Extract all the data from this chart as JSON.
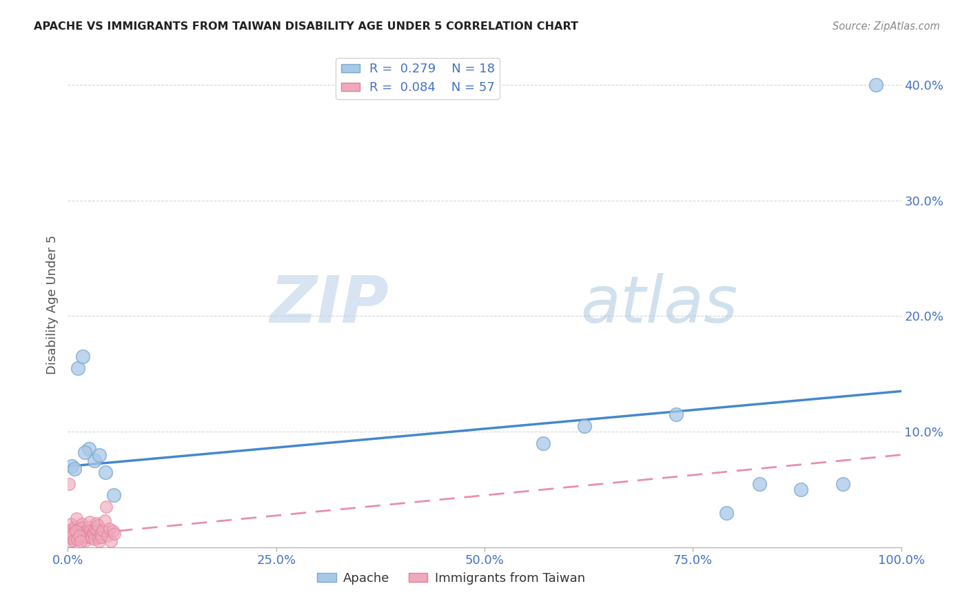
{
  "title": "APACHE VS IMMIGRANTS FROM TAIWAN DISABILITY AGE UNDER 5 CORRELATION CHART",
  "source": "Source: ZipAtlas.com",
  "ylabel": "Disability Age Under 5",
  "xlim": [
    0,
    100
  ],
  "ylim": [
    0,
    42
  ],
  "ytick_vals": [
    0,
    10,
    20,
    30,
    40
  ],
  "ytick_labels": [
    "",
    "10.0%",
    "20.0%",
    "30.0%",
    "40.0%"
  ],
  "xtick_vals": [
    0,
    25,
    50,
    75,
    100
  ],
  "xtick_labels": [
    "0.0%",
    "25.0%",
    "50.0%",
    "75.0%",
    "100.0%"
  ],
  "apache_R": "0.279",
  "apache_N": "18",
  "taiwan_R": "0.084",
  "taiwan_N": "57",
  "watermark_zip": "ZIP",
  "watermark_atlas": "atlas",
  "apache_points_x": [
    0.5,
    1.2,
    1.8,
    2.5,
    3.2,
    3.8,
    4.5,
    5.5,
    57.0,
    62.0,
    73.0,
    79.0,
    83.0,
    88.0,
    93.0,
    97.0,
    0.8,
    2.0
  ],
  "apache_points_y": [
    7.0,
    15.5,
    16.5,
    8.5,
    7.5,
    8.0,
    6.5,
    4.5,
    9.0,
    10.5,
    11.5,
    3.0,
    5.5,
    5.0,
    5.5,
    40.0,
    6.8,
    8.2
  ],
  "taiwan_points_x": [
    0.1,
    0.2,
    0.3,
    0.4,
    0.5,
    0.6,
    0.7,
    0.8,
    0.9,
    1.0,
    1.1,
    1.2,
    1.3,
    1.4,
    1.5,
    1.6,
    1.7,
    1.8,
    1.9,
    2.0,
    2.1,
    2.2,
    2.3,
    2.4,
    2.5,
    2.6,
    2.7,
    2.8,
    2.9,
    3.0,
    3.1,
    3.2,
    3.3,
    3.4,
    3.5,
    3.6,
    3.7,
    3.8,
    3.9,
    4.0,
    4.2,
    4.4,
    4.6,
    4.8,
    5.0,
    5.2,
    5.4,
    5.6,
    0.15,
    0.25,
    0.35,
    0.55,
    0.75,
    0.95,
    1.15,
    1.35,
    1.55
  ],
  "taiwan_points_y": [
    1.5,
    1.0,
    0.5,
    2.0,
    1.5,
    1.0,
    0.8,
    1.2,
    1.8,
    2.5,
    1.3,
    0.9,
    1.6,
    0.7,
    1.1,
    1.4,
    2.0,
    1.7,
    1.3,
    1.0,
    0.6,
    1.2,
    0.9,
    1.5,
    1.8,
    2.2,
    1.4,
    1.0,
    0.8,
    1.3,
    1.1,
    0.7,
    1.6,
    2.1,
    1.4,
    1.9,
    0.8,
    0.5,
    1.2,
    0.9,
    1.5,
    2.3,
    3.5,
    1.0,
    1.6,
    0.5,
    1.4,
    1.2,
    5.5,
    1.2,
    0.8,
    1.1,
    0.6,
    1.4,
    0.7,
    1.0,
    0.5
  ],
  "apache_line_x0": 0,
  "apache_line_x1": 100,
  "apache_line_y0": 7.0,
  "apache_line_y1": 13.5,
  "taiwan_line_x0": 0,
  "taiwan_line_x1": 100,
  "taiwan_line_y0": 1.0,
  "taiwan_line_y1": 8.0,
  "apache_color": "#a8c8e8",
  "apache_edge_color": "#7aaace",
  "taiwan_color": "#f0a8bc",
  "taiwan_edge_color": "#e08098",
  "apache_line_color": "#4488cc",
  "taiwan_line_color": "#e890a8",
  "background_color": "#ffffff",
  "grid_color": "#cccccc",
  "tick_color": "#4472c4",
  "title_color": "#222222",
  "source_color": "#888888",
  "ylabel_color": "#555555"
}
